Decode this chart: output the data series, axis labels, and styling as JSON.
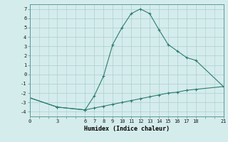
{
  "xlabel": "Humidex (Indice chaleur)",
  "line1_x": [
    0,
    3,
    6,
    7,
    8,
    9,
    10,
    11,
    12,
    13,
    14,
    15,
    16,
    17,
    18,
    21
  ],
  "line1_y": [
    -2.5,
    -3.5,
    -3.8,
    -2.3,
    -0.2,
    3.2,
    5.0,
    6.5,
    7.0,
    6.5,
    4.8,
    3.2,
    2.5,
    1.8,
    1.5,
    -1.3
  ],
  "line2_x": [
    0,
    3,
    6,
    7,
    8,
    9,
    10,
    11,
    12,
    13,
    14,
    15,
    16,
    17,
    18,
    21
  ],
  "line2_y": [
    -2.5,
    -3.5,
    -3.8,
    -3.6,
    -3.4,
    -3.2,
    -3.0,
    -2.8,
    -2.6,
    -2.4,
    -2.2,
    -2.0,
    -1.9,
    -1.7,
    -1.6,
    -1.3
  ],
  "line_color": "#2d7d6f",
  "bg_color": "#d5ecec",
  "grid_color": "#aacfcf",
  "xticks": [
    0,
    3,
    6,
    7,
    8,
    9,
    10,
    11,
    12,
    13,
    14,
    15,
    16,
    17,
    18,
    21
  ],
  "yticks": [
    -4,
    -3,
    -2,
    -1,
    0,
    1,
    2,
    3,
    4,
    5,
    6,
    7
  ],
  "xlim": [
    0,
    21
  ],
  "ylim": [
    -4.5,
    7.5
  ]
}
